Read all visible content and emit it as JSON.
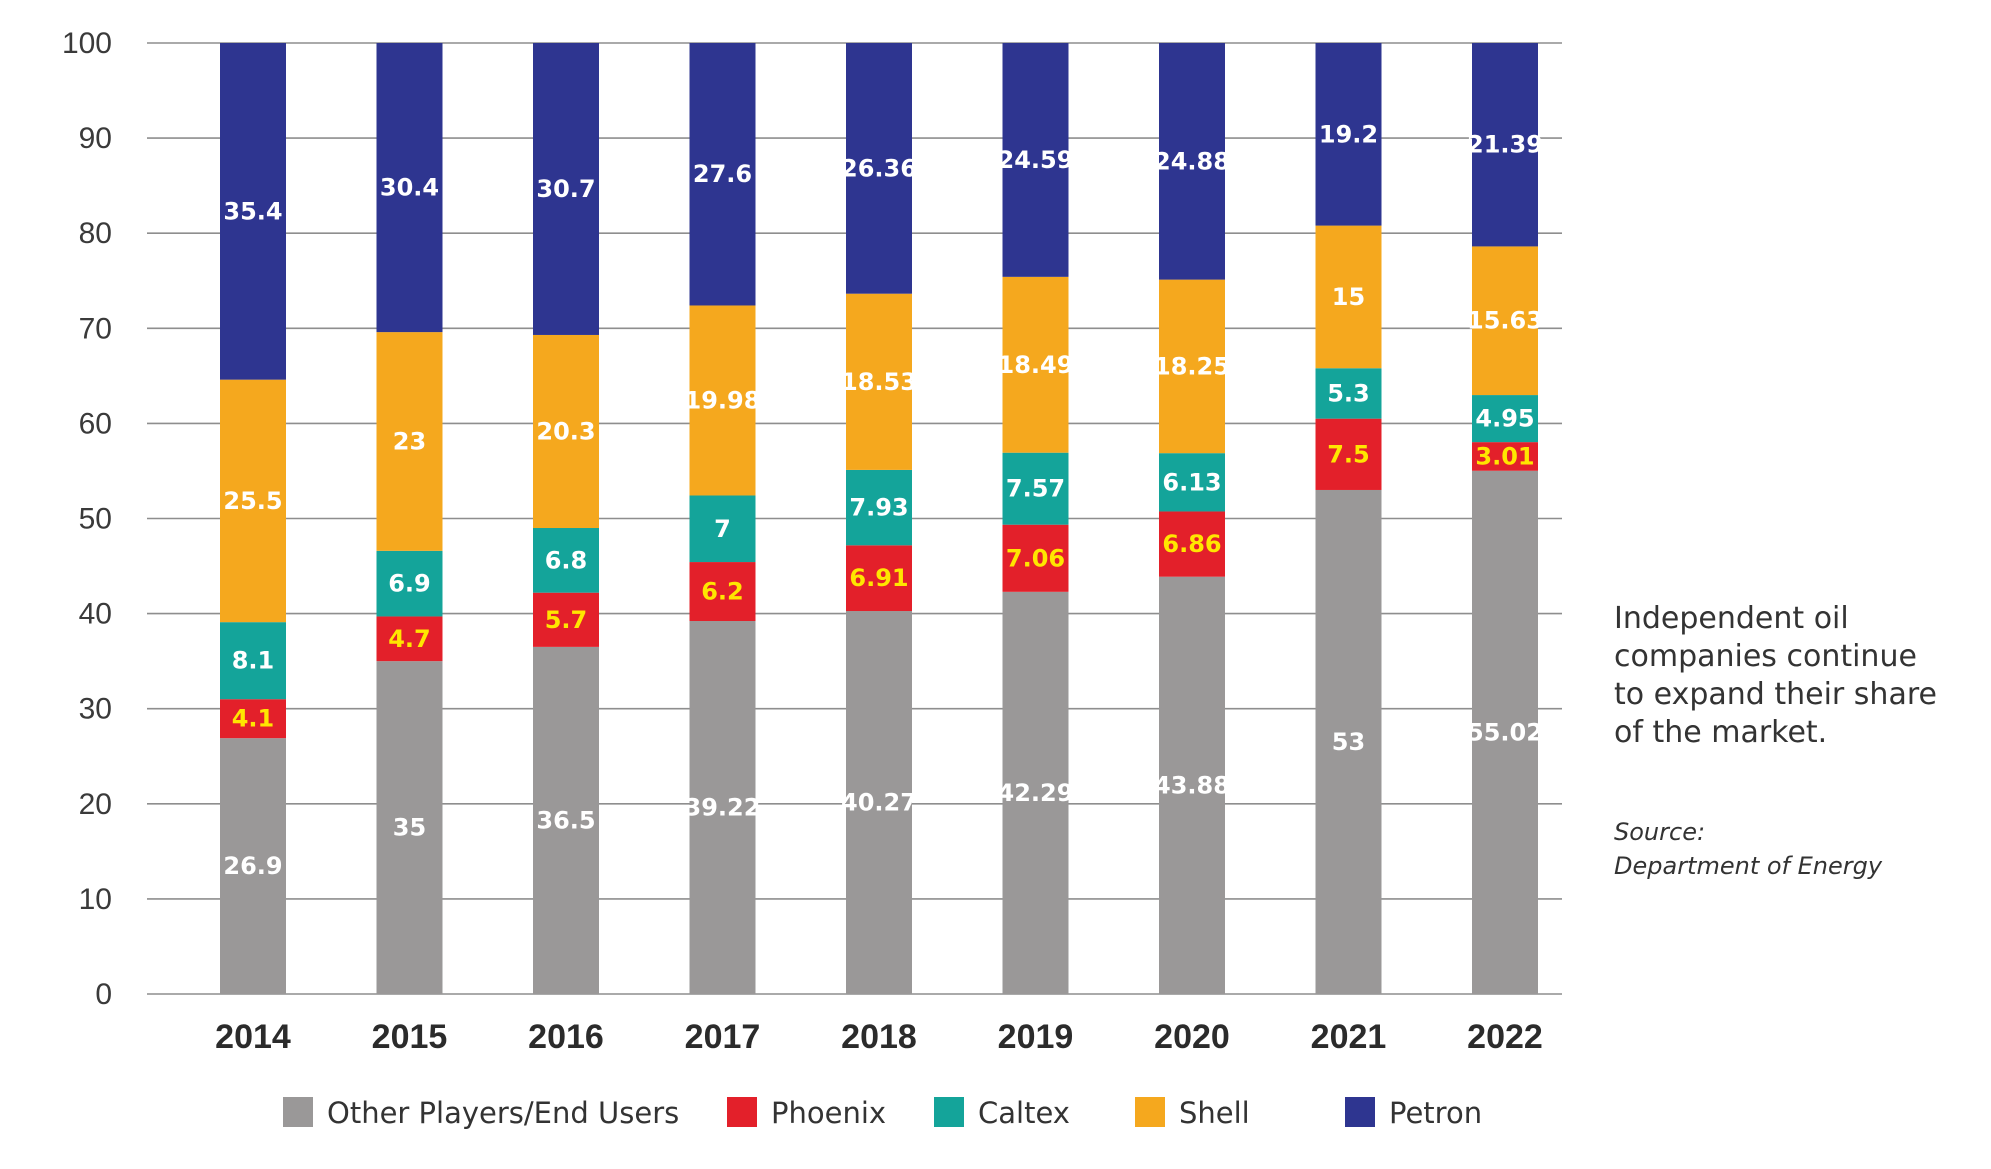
{
  "chart_data": {
    "type": "bar",
    "stacked": true,
    "categories": [
      "2014",
      "2015",
      "2016",
      "2017",
      "2018",
      "2019",
      "2020",
      "2021",
      "2022"
    ],
    "series": [
      {
        "name": "Other Players/End Users",
        "color": "#9a9898",
        "label_color": "#ffffff",
        "values": [
          26.9,
          35,
          36.5,
          39.22,
          40.27,
          42.29,
          43.88,
          53,
          55.02
        ],
        "labels": [
          "26.9",
          "35",
          "36.5",
          "39.22",
          "40.27",
          "42.29",
          "43.88",
          "53",
          "55.02"
        ]
      },
      {
        "name": "Phoenix",
        "color": "#e3202a",
        "label_color": "#ffe600",
        "values": [
          4.1,
          4.7,
          5.7,
          6.2,
          6.91,
          7.06,
          6.86,
          7.5,
          3.01
        ],
        "labels": [
          "4.1",
          "4.7",
          "5.7",
          "6.2",
          "6.91",
          "7.06",
          "6.86",
          "7.5",
          "3.01"
        ]
      },
      {
        "name": "Caltex",
        "color": "#14a49a",
        "label_color": "#ffffff",
        "values": [
          8.1,
          6.9,
          6.8,
          7,
          7.93,
          7.57,
          6.13,
          5.3,
          4.95
        ],
        "labels": [
          "8.1",
          "6.9",
          "6.8",
          "7",
          "7.93",
          "7.57",
          "6.13",
          "5.3",
          "4.95"
        ]
      },
      {
        "name": "Shell",
        "color": "#f5a81e",
        "label_color": "#ffffff",
        "values": [
          25.5,
          23,
          20.3,
          19.98,
          18.53,
          18.49,
          18.25,
          15,
          15.63
        ],
        "labels": [
          "25.5",
          "23",
          "20.3",
          "19.98",
          "18.53",
          "18.49",
          "18.25",
          "15",
          "15.63"
        ]
      },
      {
        "name": "Petron",
        "color": "#2e3590",
        "label_color": "#ffffff",
        "values": [
          35.4,
          30.4,
          30.7,
          27.6,
          26.36,
          24.59,
          24.88,
          19.2,
          21.39
        ],
        "labels": [
          "35.4",
          "30.4",
          "30.7",
          "27.6",
          "26.36",
          "24.59",
          "24.88",
          "19.2",
          "21.39"
        ]
      }
    ],
    "yticks": [
      "0",
      "10",
      "20",
      "30",
      "40",
      "50",
      "60",
      "70",
      "80",
      "90",
      "100"
    ],
    "ylim": [
      0,
      100
    ],
    "grid": true,
    "legend_placement": "bottom"
  },
  "annotation": {
    "lines": [
      "Independent oil",
      "companies continue",
      "to expand their share",
      "of the market."
    ]
  },
  "source": {
    "label": "Source:",
    "name": "Department of Energy"
  }
}
